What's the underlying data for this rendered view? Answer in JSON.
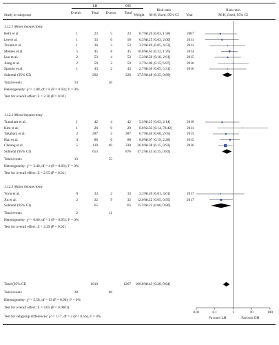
{
  "header": {
    "study": "Study or subgroup",
    "lh": "LH",
    "oh": "OH",
    "events": "Events",
    "total": "Total",
    "weight": "Weight",
    "rr_col_title": "Risk ratio",
    "rr_col_method": "M-H, fixed, 95% CI",
    "year": "Year",
    "rr_plot_title": "Risk ratio",
    "rr_plot_method": "M-H, fixed, 95% CI"
  },
  "subgroups": [
    {
      "title": "1.12.1 Minor hepatectomy",
      "studies": [
        {
          "name": "Belli et al.",
          "lh_e": "1",
          "lh_t": "23",
          "oh_e": "5",
          "oh_t": "23",
          "weight": "6.7%",
          "ci": "0.20 [0.03, 1.58]",
          "year": "2007"
        },
        {
          "name": "Lee et al.",
          "lh_e": "1",
          "lh_t": "33",
          "oh_e": "6",
          "oh_t": "50",
          "weight": "6.3%",
          "ci": "0.25 [0.03, 2.00]",
          "year": "2011"
        },
        {
          "name": "Truant et al.",
          "lh_e": "1",
          "lh_t": "36",
          "oh_e": "3",
          "oh_t": "53",
          "weight": "3.2%",
          "ci": "0.49 [0.05, 4.53]",
          "year": "2011"
        },
        {
          "name": "Memeo et al.",
          "lh_e": "5",
          "lh_t": "45",
          "oh_e": "8",
          "oh_t": "45",
          "weight": "10.6%",
          "ci": "0.63 [0.22, 1.76]",
          "year": "2014"
        },
        {
          "name": "Luo et al.",
          "lh_e": "2",
          "lh_t": "53",
          "oh_e": "4",
          "oh_t": "53",
          "weight": "5.3%",
          "ci": "0.50 [0.10, 2.61]",
          "year": "2015"
        },
        {
          "name": "Jiang et al.",
          "lh_e": "2",
          "lh_t": "59",
          "oh_e": "2",
          "oh_t": "59",
          "weight": "2.7%",
          "ci": "1.00 [0.15, 6.87]",
          "year": "2016"
        },
        {
          "name": "Sposito et al.",
          "lh_e": "1",
          "lh_t": "43",
          "oh_e": "2",
          "oh_t": "43",
          "weight": "2.7%",
          "ci": "0.50 [0.05, 5.31]",
          "year": "2016"
        }
      ],
      "subtotal_label": "Subtotal (95% CI)",
      "subtotal_lh_t": "292",
      "subtotal_oh_t": "326",
      "subtotal_weight": "37.5%",
      "subtotal_ci": "0.48 [0.25, 0.89]",
      "total_events_label": "Total events",
      "total_lh_e": "13",
      "total_oh_e": "30",
      "heterogeneity": "Heterogeneity: χ² = 1.88, df = 6 (P = 0.93); I² = 0%",
      "overall": "Test for overall effect: Z = 2.30 (P = 0.02)"
    },
    {
      "title": "1.12.2 Mixed hepatectomy",
      "studies": [
        {
          "name": "Tranchart et al.",
          "lh_e": "1",
          "lh_t": "42",
          "oh_e": "4",
          "oh_t": "42",
          "weight": "5.3%",
          "ci": "0.25 [0.03, 2.14]",
          "year": "2010"
        },
        {
          "name": "Kim et al.",
          "lh_e": "1",
          "lh_t": "26",
          "oh_e": "0",
          "oh_t": "29",
          "weight": "0.6%",
          "ci": "3.33 [0.14, 78.42]",
          "year": "2011"
        },
        {
          "name": "Takahara et al.",
          "lh_e": "2",
          "lh_t": "387",
          "oh_e": "5",
          "oh_t": "387",
          "weight": "6.7%",
          "ci": "0.40 [0.08, 2.05]",
          "year": "2015"
        },
        {
          "name": "Han et al.",
          "lh_e": "4",
          "lh_t": "88",
          "oh_e": "6",
          "oh_t": "88",
          "weight": "8.0%",
          "ci": "0.67 [0.19, 2.28]",
          "year": "2015"
        },
        {
          "name": "Cheung et al.",
          "lh_e": "5",
          "lh_t": "110",
          "oh_e": "40",
          "oh_t": "330",
          "weight": "26.6%",
          "ci": "0.38 [0.15, 0.93]",
          "year": "2016"
        }
      ],
      "subtotal_label": "Subtotal (95% CI)",
      "subtotal_lh_t": "653",
      "subtotal_oh_t": "876",
      "subtotal_weight": "47.2%",
      "subtotal_ci": "0.45 [0.25, 0.83]",
      "total_events_label": "Total events",
      "total_lh_e": "13",
      "total_oh_e": "55",
      "heterogeneity": "Heterogeneity: χ² = 2.40, df = 4 (P = 0.66); I² = 0%",
      "overall": "Test for overall effect: Z = 2.55 (P = 0.01)"
    },
    {
      "title": "1.12.3 Major hepatectomy",
      "studies": [
        {
          "name": "Yoon et al.",
          "lh_e": "0",
          "lh_t": "33",
          "oh_e": "2",
          "oh_t": "33",
          "weight": "3.3%",
          "ci": "0.20 [0.01, 4.01]",
          "year": "2017"
        },
        {
          "name": "Xu et al.",
          "lh_e": "2",
          "lh_t": "32",
          "oh_e": "9",
          "oh_t": "32",
          "weight": "12.0%",
          "ci": "0.22 [0.05, 0.95]",
          "year": "2017"
        }
      ],
      "subtotal_label": "Subtotal (95% CI)",
      "subtotal_lh_t": "65",
      "subtotal_oh_t": "65",
      "subtotal_weight": "15.3%",
      "subtotal_ci": "0.22 [0.06, 0.80]",
      "total_events_label": "Total events",
      "total_lh_e": "2",
      "total_oh_e": "11",
      "heterogeneity": "Heterogeneity: χ² = 0.00, df = 1 (P = 0.95); I² = 0%",
      "overall": "Test for overall effect: Z = 2.29 (P = 0.02)"
    }
  ],
  "total": {
    "label": "Total (95% CI)",
    "lh_t": "1010",
    "oh_t": "1267",
    "weight": "100.0%",
    "ci": "0.43 [0.28, 0.64]",
    "events_label": "Total events",
    "lh_e": "28",
    "oh_e": "96",
    "heterogeneity": "Heterogeneity: χ² = 5.58, df = 13 (P = 0.96); I² = 0%",
    "overall": "Test for overall effect: Z = 4.05 (P < 0.0001)",
    "subgroup_diff": "Test for subgroup differences: χ² = 1.17, df = 2 (P = 0.56), I² = 0%"
  },
  "axis": {
    "ticks": [
      "0.01",
      "0.1",
      "1",
      "10",
      "100"
    ],
    "favours_left": "Favours LH",
    "favours_right": "Favours OH"
  },
  "chart_data": {
    "type": "forest",
    "scale": "log",
    "xlim": [
      0.01,
      100
    ],
    "reference_line": 1,
    "study_color": "#3a55a4",
    "diamond_color": "#000000",
    "studies": [
      {
        "name": "Belli et al.",
        "rr": 0.2,
        "lo": 0.03,
        "hi": 1.58
      },
      {
        "name": "Lee et al.",
        "rr": 0.25,
        "lo": 0.03,
        "hi": 2.0
      },
      {
        "name": "Truant et al.",
        "rr": 0.49,
        "lo": 0.05,
        "hi": 4.53
      },
      {
        "name": "Memeo et al.",
        "rr": 0.63,
        "lo": 0.22,
        "hi": 1.76
      },
      {
        "name": "Luo et al.",
        "rr": 0.5,
        "lo": 0.1,
        "hi": 2.61
      },
      {
        "name": "Jiang et al.",
        "rr": 1.0,
        "lo": 0.15,
        "hi": 6.87
      },
      {
        "name": "Sposito et al.",
        "rr": 0.5,
        "lo": 0.05,
        "hi": 5.31
      },
      {
        "name": "Tranchart et al.",
        "rr": 0.25,
        "lo": 0.03,
        "hi": 2.14
      },
      {
        "name": "Kim et al.",
        "rr": 3.33,
        "lo": 0.14,
        "hi": 78.42
      },
      {
        "name": "Takahara et al.",
        "rr": 0.4,
        "lo": 0.08,
        "hi": 2.05
      },
      {
        "name": "Han et al.",
        "rr": 0.67,
        "lo": 0.19,
        "hi": 2.28
      },
      {
        "name": "Cheung et al.",
        "rr": 0.38,
        "lo": 0.15,
        "hi": 0.93
      },
      {
        "name": "Yoon et al.",
        "rr": 0.2,
        "lo": 0.01,
        "hi": 4.01
      },
      {
        "name": "Xu et al.",
        "rr": 0.22,
        "lo": 0.05,
        "hi": 0.95
      }
    ],
    "weights": [
      6.7,
      6.3,
      3.2,
      10.6,
      5.3,
      2.7,
      2.7,
      5.3,
      0.6,
      6.7,
      8.0,
      26.6,
      3.3,
      12.0
    ],
    "diamonds": [
      {
        "name": "Subtotal 1.12.1",
        "rr": 0.48,
        "lo": 0.25,
        "hi": 0.89
      },
      {
        "name": "Subtotal 1.12.2",
        "rr": 0.45,
        "lo": 0.25,
        "hi": 0.83
      },
      {
        "name": "Subtotal 1.12.3",
        "rr": 0.22,
        "lo": 0.06,
        "hi": 0.8
      },
      {
        "name": "Total",
        "rr": 0.43,
        "lo": 0.28,
        "hi": 0.64
      }
    ]
  }
}
